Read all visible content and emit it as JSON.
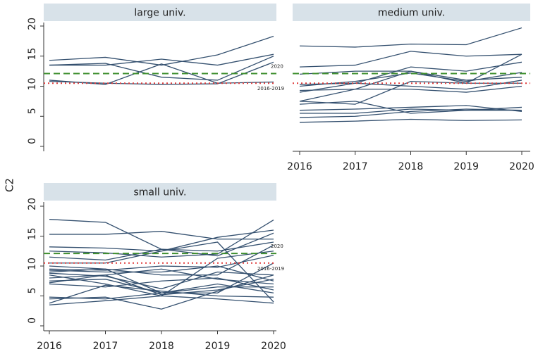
{
  "ylabel": "C2",
  "chart_data": [
    {
      "type": "line",
      "title": "large univ.",
      "color": "#34506f",
      "x": [
        2016,
        2017,
        2018,
        2019,
        2020
      ],
      "xlim": [
        2016,
        2020
      ],
      "ylim": [
        0,
        20
      ],
      "yticks": [
        0,
        5,
        10,
        15,
        20
      ],
      "reference_lines": [
        {
          "label": "2020",
          "value": 12.1,
          "color": "#3f8f2f",
          "style": "dashed"
        },
        {
          "label": "2016-2019",
          "value": 10.5,
          "color": "#e03a3a",
          "style": "dotted"
        }
      ],
      "series": [
        {
          "values": [
            14.3,
            14.8,
            13.5,
            15.2,
            18.3
          ]
        },
        {
          "values": [
            13.5,
            13.5,
            14.5,
            13.5,
            15.3
          ]
        },
        {
          "values": [
            13.5,
            13.8,
            11.5,
            11.0,
            15.0
          ]
        },
        {
          "values": [
            11.0,
            10.3,
            13.7,
            10.5,
            10.7
          ]
        },
        {
          "values": [
            10.8,
            10.5,
            10.3,
            10.4,
            14.0
          ]
        }
      ]
    },
    {
      "type": "line",
      "title": "medium univ.",
      "color": "#34506f",
      "x": [
        2016,
        2017,
        2018,
        2019,
        2020
      ],
      "xlim": [
        2016,
        2020
      ],
      "xticks": [
        2016,
        2017,
        2018,
        2019,
        2020
      ],
      "ylim": [
        0,
        20
      ],
      "reference_lines": [
        {
          "value": 12.1,
          "color": "#3f8f2f",
          "style": "dashed"
        },
        {
          "value": 10.5,
          "color": "#e03a3a",
          "style": "dotted"
        }
      ],
      "series": [
        {
          "values": [
            16.7,
            16.5,
            17.0,
            16.9,
            19.7
          ]
        },
        {
          "values": [
            13.2,
            13.5,
            15.8,
            15.0,
            15.3
          ]
        },
        {
          "values": [
            12.0,
            12.5,
            12.5,
            10.5,
            15.3
          ]
        },
        {
          "values": [
            10.3,
            10.5,
            13.2,
            12.5,
            14.0
          ]
        },
        {
          "values": [
            10.0,
            10.8,
            12.2,
            10.8,
            12.3
          ]
        },
        {
          "values": [
            9.3,
            9.5,
            12.5,
            11.0,
            11.5
          ]
        },
        {
          "values": [
            9.0,
            10.5,
            10.0,
            9.5,
            11.0
          ]
        },
        {
          "values": [
            7.5,
            7.0,
            10.8,
            10.5,
            10.5
          ]
        },
        {
          "values": [
            7.5,
            9.5,
            9.5,
            9.0,
            10.0
          ]
        },
        {
          "values": [
            7.0,
            7.5,
            5.5,
            6.0,
            6.0
          ]
        },
        {
          "values": [
            6.0,
            6.2,
            6.5,
            6.8,
            5.8
          ]
        },
        {
          "values": [
            5.5,
            5.5,
            6.2,
            6.0,
            6.5
          ]
        },
        {
          "values": [
            4.8,
            5.0,
            5.8,
            6.2,
            6.0
          ]
        },
        {
          "values": [
            4.0,
            4.2,
            4.5,
            4.3,
            4.4
          ]
        }
      ]
    },
    {
      "type": "line",
      "title": "small univ.",
      "color": "#34506f",
      "x": [
        2016,
        2017,
        2018,
        2019,
        2020
      ],
      "xlim": [
        2016,
        2020
      ],
      "xticks": [
        2016,
        2017,
        2018,
        2019,
        2020
      ],
      "ylim": [
        0,
        20
      ],
      "yticks": [
        0,
        5,
        10,
        15,
        20
      ],
      "reference_lines": [
        {
          "label": "2020",
          "value": 12.1,
          "color": "#3f8f2f",
          "style": "dashed"
        },
        {
          "label": "2016-2019",
          "value": 10.5,
          "color": "#e03a3a",
          "style": "dotted"
        }
      ],
      "series": [
        {
          "values": [
            17.8,
            17.3,
            12.8,
            11.7,
            15.5
          ]
        },
        {
          "values": [
            15.3,
            15.3,
            15.8,
            14.5,
            14.5
          ]
        },
        {
          "values": [
            13.2,
            13.0,
            12.5,
            14.8,
            16.0
          ]
        },
        {
          "values": [
            12.5,
            12.2,
            11.5,
            12.0,
            17.7
          ]
        },
        {
          "values": [
            11.5,
            11.0,
            12.8,
            12.5,
            14.0
          ]
        },
        {
          "values": [
            10.5,
            10.5,
            12.5,
            14.0,
            4.0
          ]
        },
        {
          "values": [
            10.0,
            9.5,
            8.5,
            8.5,
            13.5
          ]
        },
        {
          "values": [
            9.5,
            9.3,
            10.0,
            9.8,
            11.8
          ]
        },
        {
          "values": [
            9.3,
            9.0,
            9.0,
            10.0,
            7.5
          ]
        },
        {
          "values": [
            9.0,
            9.5,
            5.5,
            5.5,
            10.5
          ]
        },
        {
          "values": [
            8.8,
            8.3,
            6.2,
            9.0,
            8.5
          ]
        },
        {
          "values": [
            8.5,
            7.0,
            5.0,
            11.3,
            12.5
          ]
        },
        {
          "values": [
            8.0,
            8.5,
            9.5,
            7.8,
            7.0
          ]
        },
        {
          "values": [
            7.5,
            7.8,
            5.5,
            6.5,
            6.5
          ]
        },
        {
          "values": [
            7.2,
            8.5,
            5.2,
            6.0,
            7.8
          ]
        },
        {
          "values": [
            7.0,
            6.5,
            7.5,
            8.0,
            6.0
          ]
        },
        {
          "values": [
            4.8,
            4.5,
            5.5,
            7.0,
            5.5
          ]
        },
        {
          "values": [
            4.5,
            4.8,
            2.8,
            5.8,
            8.5
          ]
        },
        {
          "values": [
            3.8,
            6.8,
            5.8,
            5.0,
            4.8
          ]
        },
        {
          "values": [
            3.5,
            4.2,
            5.0,
            4.5,
            3.8
          ]
        }
      ]
    }
  ]
}
